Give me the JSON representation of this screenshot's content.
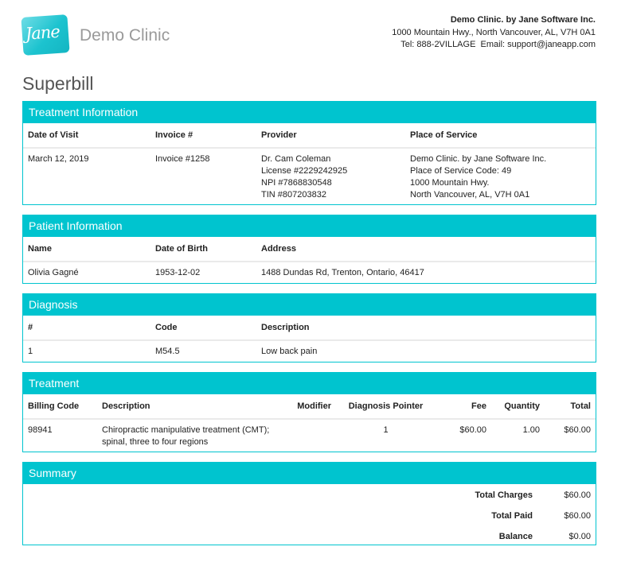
{
  "header": {
    "logo_text": "Jane",
    "clinic": "Demo Clinic",
    "org_name": "Demo Clinic. by Jane Software Inc.",
    "org_address": "1000 Mountain Hwy., North Vancouver, AL, V7H 0A1",
    "org_contact": "Tel: 888-2VILLAGE  Email: support@janeapp.com"
  },
  "title": "Superbill",
  "colors": {
    "accent": "#00c4cf"
  },
  "treatment_info": {
    "title": "Treatment Information",
    "headers": [
      "Date of Visit",
      "Invoice #",
      "Provider",
      "Place of Service"
    ],
    "date": "March 12, 2019",
    "invoice": "Invoice #1258",
    "provider": [
      "Dr. Cam Coleman",
      "License #2229242925",
      "NPI #7868830548",
      "TIN #807203832"
    ],
    "place": [
      "Demo Clinic. by Jane Software Inc.",
      "Place of Service Code: 49",
      "1000 Mountain Hwy.",
      "North Vancouver, AL, V7H 0A1"
    ]
  },
  "patient": {
    "title": "Patient Information",
    "headers": [
      "Name",
      "Date of Birth",
      "Address"
    ],
    "name": "Olivia Gagné",
    "dob": "1953-12-02",
    "address": "1488 Dundas Rd, Trenton, Ontario, 46417"
  },
  "diagnosis": {
    "title": "Diagnosis",
    "headers": [
      "#",
      "Code",
      "Description"
    ],
    "rows": [
      {
        "num": "1",
        "code": "M54.5",
        "desc": "Low back pain"
      }
    ]
  },
  "treatment": {
    "title": "Treatment",
    "headers": [
      "Billing Code",
      "Description",
      "Modifier",
      "Diagnosis Pointer",
      "Fee",
      "Quantity",
      "Total"
    ],
    "rows": [
      {
        "code": "98941",
        "desc_line1": "Chiropractic manipulative treatment (CMT);",
        "desc_line2": "spinal, three to four regions",
        "modifier": "",
        "pointer": "1",
        "fee": "$60.00",
        "qty": "1.00",
        "total": "$60.00"
      }
    ]
  },
  "summary": {
    "title": "Summary",
    "rows": [
      {
        "label": "Total Charges",
        "value": "$60.00"
      },
      {
        "label": "Total Paid",
        "value": "$60.00"
      },
      {
        "label": "Balance",
        "value": "$0.00"
      }
    ]
  }
}
